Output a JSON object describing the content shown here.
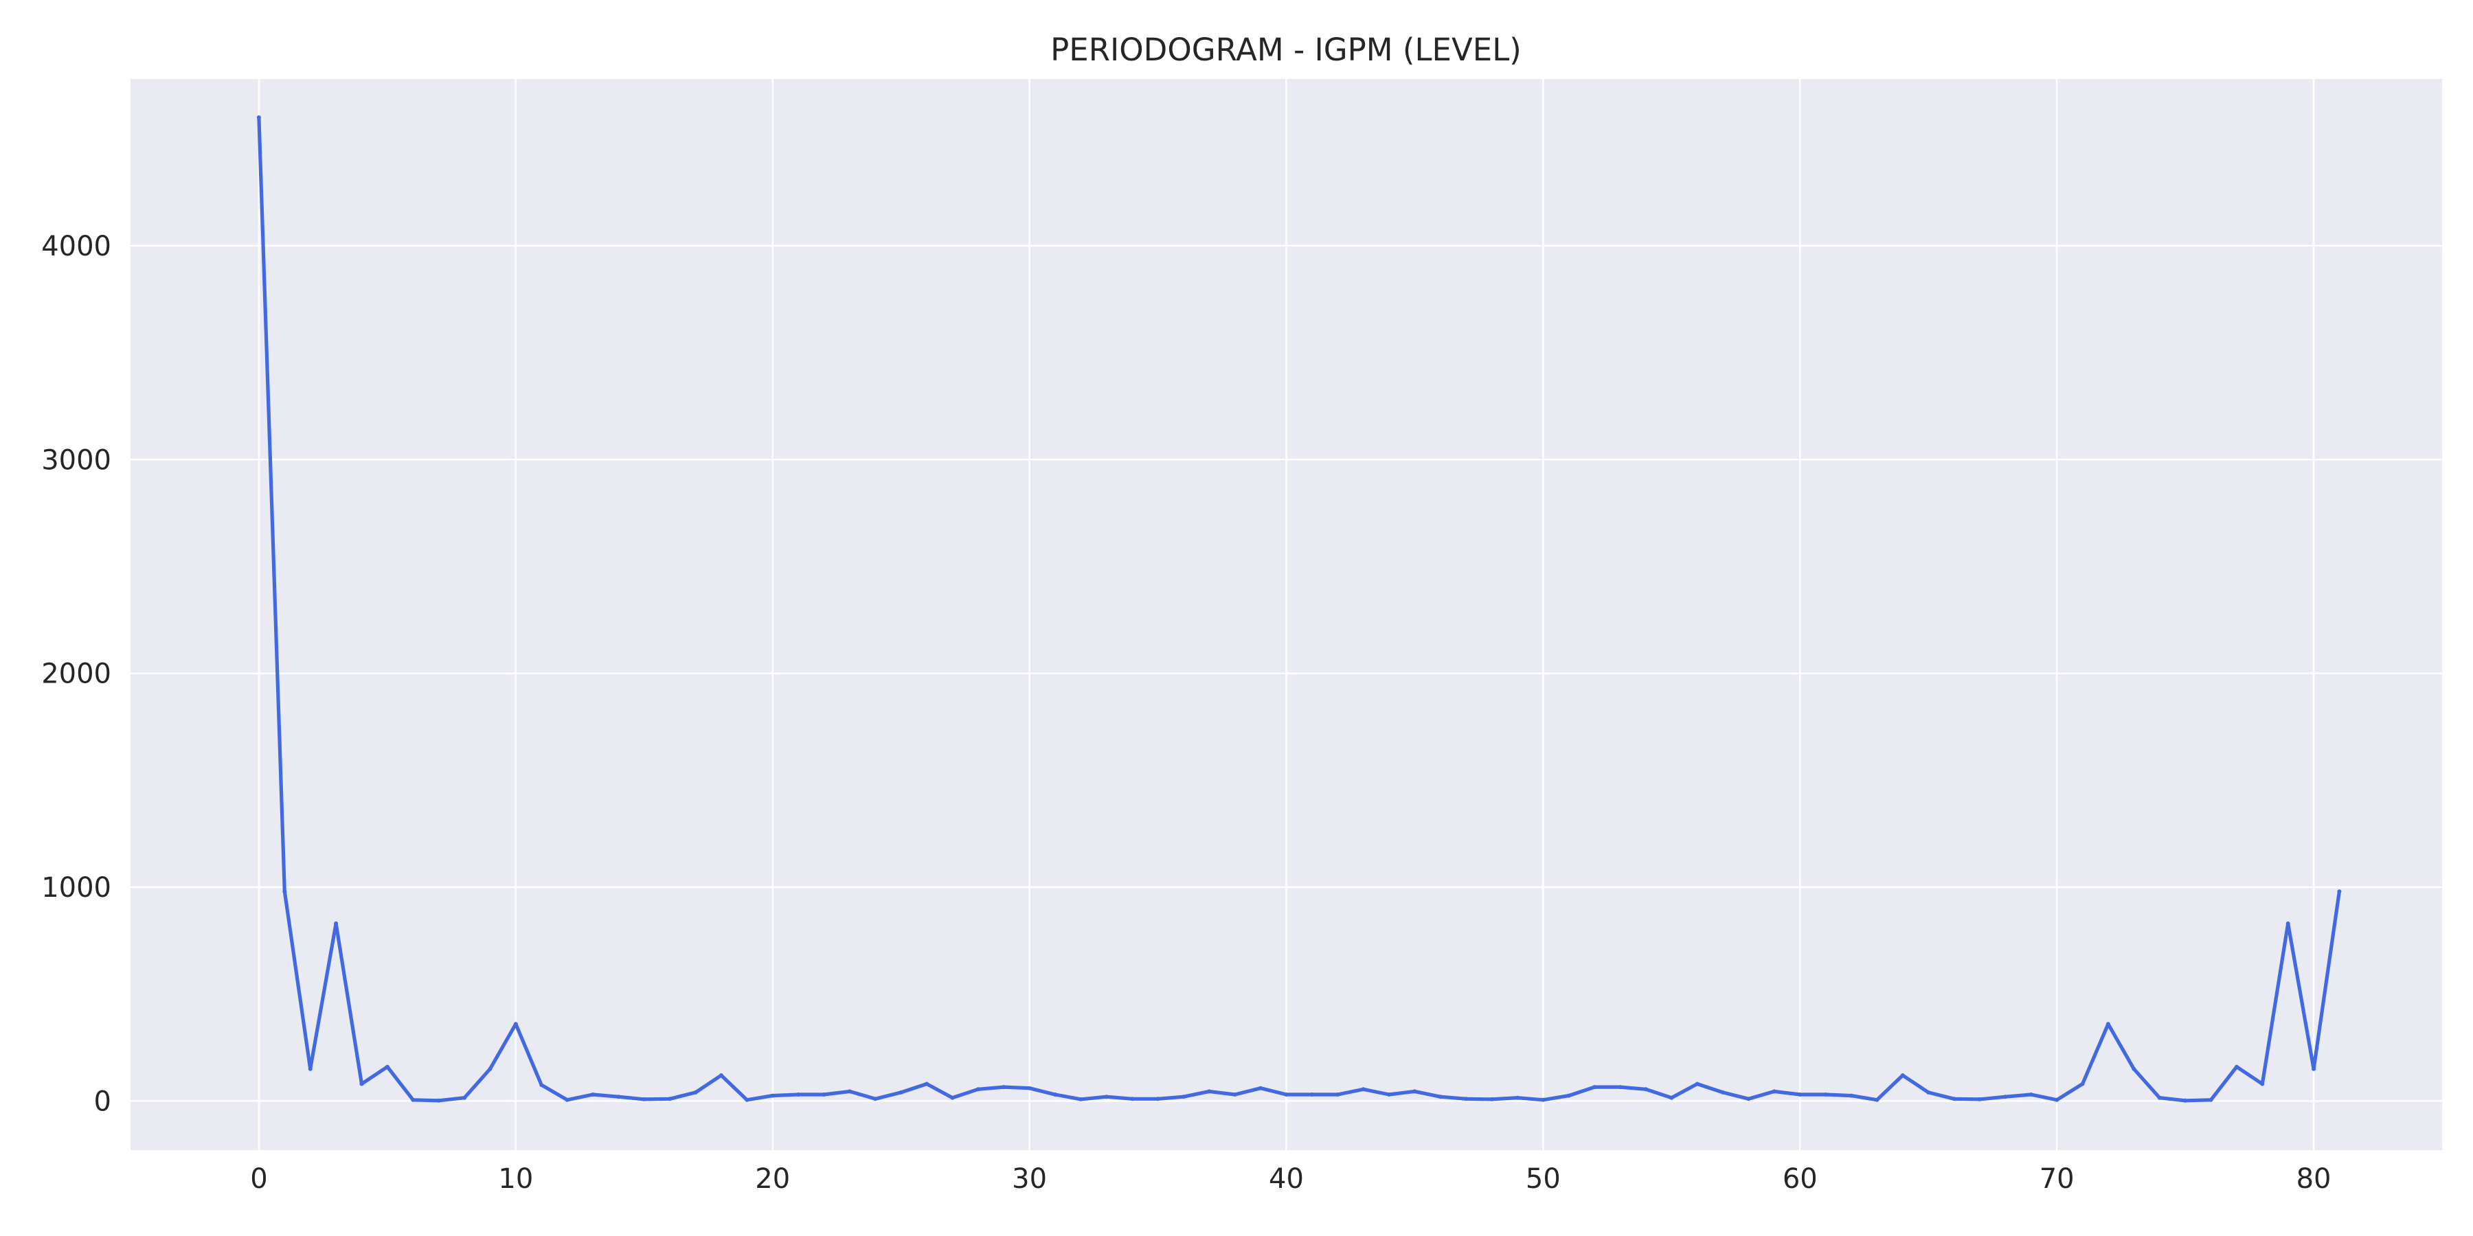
{
  "chart_data": {
    "type": "line",
    "title": "PERIODOGRAM - IGPM (LEVEL)",
    "xlabel": "",
    "ylabel": "",
    "xlim": [
      -5,
      85
    ],
    "ylim": [
      -230,
      4780
    ],
    "xticks": [
      0,
      10,
      20,
      30,
      40,
      50,
      60,
      70,
      80
    ],
    "yticks": [
      0,
      1000,
      2000,
      3000,
      4000
    ],
    "grid": true,
    "legend": "none",
    "colors": {
      "line": "#4169e1",
      "plot_background": "#eaeaf2",
      "grid": "#ffffff",
      "text": "#262626"
    },
    "series": [
      {
        "x": [
          0,
          1,
          2,
          3,
          4,
          5,
          6,
          7,
          8,
          9,
          10,
          11,
          12,
          13,
          14,
          15,
          16,
          17,
          18,
          19,
          20,
          21,
          22,
          23,
          24,
          25,
          26,
          27,
          28,
          29,
          30,
          31,
          32,
          33,
          34,
          35,
          36,
          37,
          38,
          39,
          40,
          41,
          42,
          43,
          44,
          45,
          46,
          47,
          48,
          49,
          50,
          51,
          52,
          53,
          54,
          55,
          56,
          57,
          58,
          59,
          60,
          61,
          62,
          63,
          64,
          65,
          66,
          67,
          68,
          69,
          70,
          71,
          72,
          73,
          74,
          75,
          76,
          77,
          78,
          79,
          80,
          81
        ],
        "values": [
          4600,
          980,
          150,
          830,
          80,
          160,
          5,
          2,
          15,
          150,
          360,
          75,
          5,
          30,
          20,
          8,
          10,
          40,
          120,
          5,
          25,
          30,
          30,
          45,
          10,
          40,
          80,
          15,
          55,
          65,
          60,
          30,
          8,
          20,
          10,
          10,
          20,
          45,
          30,
          60,
          30,
          30,
          30,
          55,
          30,
          45,
          20,
          10,
          8,
          15,
          5,
          25,
          65,
          65,
          55,
          15,
          80,
          40,
          10,
          45,
          30,
          30,
          25,
          5,
          120,
          40,
          10,
          8,
          20,
          30,
          5,
          80,
          360,
          150,
          15,
          2,
          5,
          160,
          80,
          830,
          150,
          980
        ]
      }
    ]
  }
}
